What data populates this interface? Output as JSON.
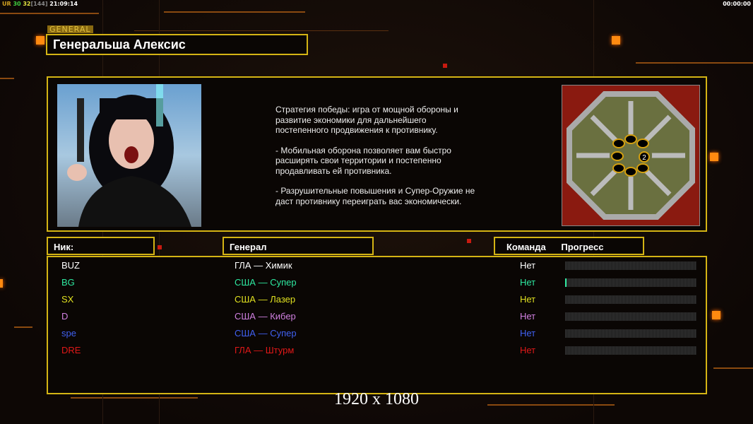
{
  "status": {
    "parts": [
      {
        "text": "UR",
        "color": "#d0a020"
      },
      {
        "text": " 30",
        "color": "#40d040"
      },
      {
        "text": " 32",
        "color": "#e0e040"
      },
      {
        "text": "[144]",
        "color": "#888888"
      },
      {
        "text": " 21:09:14",
        "color": "#ffffff"
      }
    ],
    "clock": "00:00:00"
  },
  "header": {
    "tag": "GENERAL",
    "title": "Генеральша Алексис"
  },
  "description": [
    "Стратегия победы: игра от мощной обороны и\n развитие экономики для дальнейшего\n постепенного продвижения к противнику.",
    "- Мобильная оборона позволяет вам быстро\n расширять свои территории и постепенно\n продавливать ей противника.",
    "- Разрушительные повышения и Супер-Оружие не\n даст противнику переиграть вас экономически."
  ],
  "map": {
    "marker": "2"
  },
  "columns": {
    "nick": "Ник:",
    "general": "Генерал",
    "team": "Команда",
    "progress": "Прогресс"
  },
  "players": [
    {
      "nick": "BUZ",
      "general": "ГЛА — Химик",
      "team": "Нет",
      "color": "#ffffff",
      "progress": 0
    },
    {
      "nick": "BG",
      "general": "США — Супер",
      "team": "Нет",
      "color": "#2ee8a0",
      "progress": 1
    },
    {
      "nick": "SX",
      "general": "США — Лазер",
      "team": "Нет",
      "color": "#e0e020",
      "progress": 0
    },
    {
      "nick": "D",
      "general": "США — Кибер",
      "team": "Нет",
      "color": "#d080e0",
      "progress": 0
    },
    {
      "nick": "spe",
      "general": "США — Супер",
      "team": "Нет",
      "color": "#4060f0",
      "progress": 0
    },
    {
      "nick": "DRE",
      "general": "ГЛА — Штурм",
      "team": "Нет",
      "color": "#e01818",
      "progress": 0
    }
  ],
  "resolution": "1920 x 1080"
}
